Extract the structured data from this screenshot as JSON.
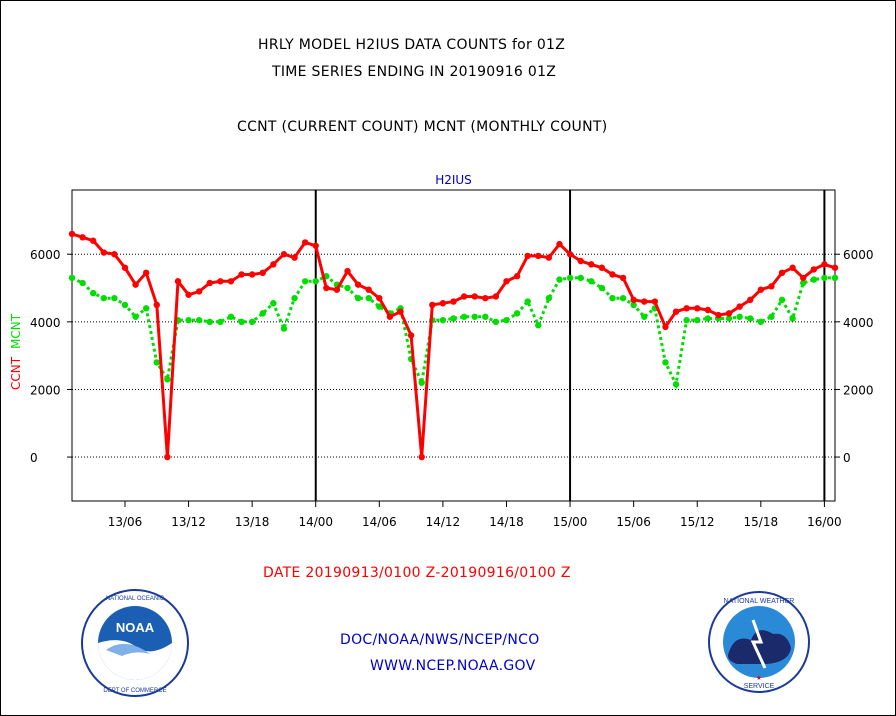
{
  "header": {
    "title_line1": "HRLY MODEL H2IUS DATA COUNTS for 01Z",
    "title_line2": "TIME SERIES ENDING IN 20190916 01Z",
    "subtitle": "CCNT (CURRENT COUNT) MCNT (MONTHLY COUNT)"
  },
  "footer": {
    "date_range": "DATE 20190913/0100 Z-20190916/0100 Z",
    "org_path": "DOC/NOAA/NWS/NCEP/NCO",
    "url": "WWW.NCEP.NOAA.GOV"
  },
  "logos": {
    "noaa": {
      "center_text": "NOAA",
      "ring_text": "NATIONAL OCEANIC AND ATMOSPHERIC ADMINISTRATION · U.S. DEPARTMENT OF COMMERCE"
    },
    "nws": {
      "ring_text": "NATIONAL WEATHER SERVICE"
    }
  },
  "colors": {
    "ccnt": "#ff0000",
    "mcnt": "#00dd00",
    "title": "#0000cc",
    "text": "#000000"
  },
  "chart_data": {
    "type": "line",
    "title": "H2IUS",
    "ylabel_left": [
      "CCNT",
      "MCNT"
    ],
    "ylim": [
      -1300,
      7900
    ],
    "yticks": [
      0,
      2000,
      4000,
      6000
    ],
    "xticks": [
      "13/06",
      "13/12",
      "13/18",
      "14/00",
      "14/06",
      "14/12",
      "14/18",
      "15/00",
      "15/06",
      "15/12",
      "15/18",
      "16/00"
    ],
    "x_start": "13/01",
    "x_end": "16/01",
    "grid": "horizontal",
    "day_boundaries": [
      "14/00",
      "15/00",
      "16/00"
    ],
    "series": [
      {
        "name": "CCNT",
        "color": "#ff0000",
        "style": "solid",
        "values": [
          6600,
          6500,
          6400,
          6050,
          6000,
          5600,
          5100,
          5450,
          4500,
          0,
          5200,
          4800,
          4900,
          5150,
          5200,
          5200,
          5400,
          5400,
          5450,
          5700,
          6000,
          5900,
          6350,
          6250,
          5000,
          4950,
          5500,
          5100,
          4950,
          4700,
          4150,
          4300,
          3600,
          0,
          4500,
          4550,
          4600,
          4750,
          4750,
          4700,
          4750,
          5200,
          5350,
          5950,
          5950,
          5900,
          6300,
          6000,
          5800,
          5700,
          5600,
          5400,
          5300,
          4650,
          4600,
          4600,
          3850,
          4300,
          4400,
          4400,
          4350,
          4200,
          4250,
          4450,
          4650,
          4950,
          5050,
          5450,
          5600,
          5300,
          5550,
          5700,
          5600
        ]
      },
      {
        "name": "MCNT",
        "color": "#00dd00",
        "style": "dotted",
        "values": [
          5300,
          5150,
          4850,
          4700,
          4700,
          4500,
          4150,
          4400,
          2800,
          2300,
          4050,
          4050,
          4050,
          4000,
          4000,
          4150,
          4000,
          4000,
          4250,
          4550,
          3800,
          4700,
          5200,
          5200,
          5350,
          5100,
          5000,
          4700,
          4700,
          4450,
          4250,
          4400,
          2900,
          2200,
          4050,
          4050,
          4100,
          4150,
          4150,
          4150,
          4000,
          4050,
          4250,
          4600,
          3900,
          4700,
          5250,
          5300,
          5300,
          5200,
          5000,
          4700,
          4700,
          4500,
          4150,
          4400,
          2800,
          2150,
          4050,
          4050,
          4100,
          4100,
          4100,
          4150,
          4100,
          4000,
          4150,
          4650,
          4100,
          5150,
          5250,
          5300,
          5300
        ]
      }
    ]
  }
}
